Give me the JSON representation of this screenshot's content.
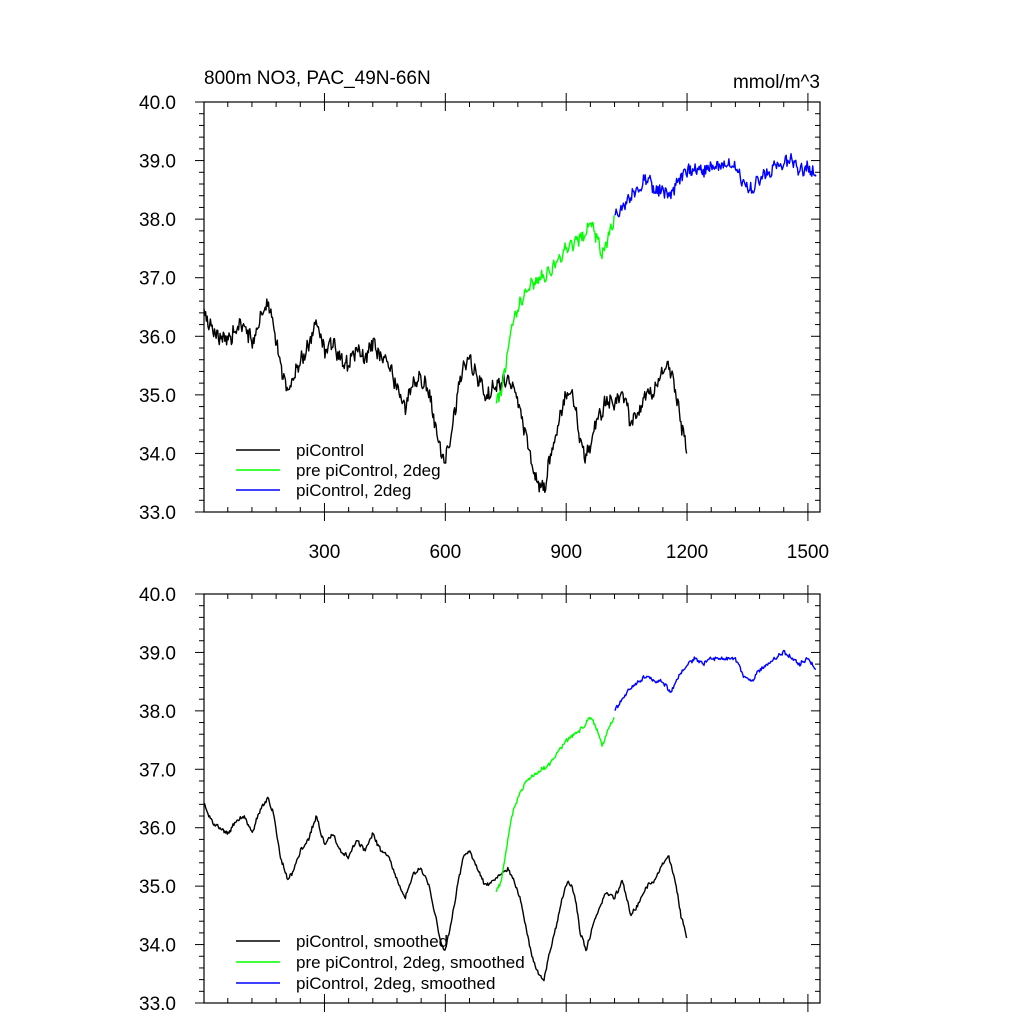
{
  "chart_data": [
    {
      "type": "line",
      "title": "800m NO3, PAC_49N-66N",
      "units": "mmol/m^3",
      "xlim": [
        1,
        1530
      ],
      "ylim": [
        33.0,
        40.0
      ],
      "x_ticks": [
        300,
        600,
        900,
        1200,
        1500
      ],
      "y_ticks": [
        33.0,
        34.0,
        35.0,
        36.0,
        37.0,
        38.0,
        39.0,
        40.0
      ],
      "x_tick_labels": [
        "300",
        "600",
        "900",
        "1200",
        "1500"
      ],
      "y_tick_labels": [
        "33.0",
        "34.0",
        "35.0",
        "36.0",
        "37.0",
        "38.0",
        "39.0",
        "40.0"
      ],
      "grid": false,
      "legend_position": "bottom-left",
      "series": [
        {
          "name": "piControl",
          "color": "#000000",
          "noise": 0.12,
          "x": [
            1,
            20,
            40,
            60,
            80,
            100,
            120,
            140,
            160,
            175,
            190,
            200,
            210,
            225,
            240,
            260,
            280,
            300,
            320,
            340,
            360,
            380,
            400,
            420,
            440,
            460,
            480,
            500,
            520,
            540,
            560,
            575,
            590,
            600,
            615,
            630,
            645,
            660,
            680,
            700,
            720,
            740,
            755,
            770,
            785,
            800,
            815,
            830,
            845,
            860,
            875,
            890,
            905,
            920,
            935,
            950,
            965,
            980,
            1000,
            1020,
            1040,
            1060,
            1080,
            1100,
            1120,
            1140,
            1155,
            1170,
            1185,
            1200
          ],
          "y": [
            36.4,
            36.1,
            36.0,
            35.9,
            36.1,
            36.2,
            35.9,
            36.3,
            36.6,
            36.2,
            35.5,
            35.3,
            35.1,
            35.3,
            35.6,
            35.8,
            36.3,
            35.7,
            35.9,
            35.6,
            35.5,
            35.8,
            35.6,
            35.9,
            35.6,
            35.5,
            35.1,
            34.8,
            35.2,
            35.3,
            35.0,
            34.5,
            34.0,
            33.9,
            34.4,
            35.0,
            35.5,
            35.6,
            35.3,
            35.0,
            35.1,
            35.2,
            35.3,
            35.1,
            34.8,
            34.3,
            33.8,
            33.5,
            33.4,
            33.9,
            34.3,
            34.8,
            35.1,
            34.9,
            34.2,
            33.9,
            34.3,
            34.6,
            34.9,
            34.8,
            35.1,
            34.5,
            34.7,
            35.0,
            35.1,
            35.4,
            35.5,
            35.1,
            34.5,
            34.1
          ]
        },
        {
          "name": "pre piControl, 2deg",
          "color": "#00ff00",
          "noise": 0.1,
          "x": [
            725,
            740,
            755,
            765,
            780,
            800,
            820,
            840,
            860,
            880,
            900,
            920,
            940,
            960,
            975,
            990,
            1005,
            1020
          ],
          "y": [
            34.8,
            35.1,
            35.8,
            36.2,
            36.5,
            36.8,
            36.9,
            37.0,
            37.1,
            37.3,
            37.5,
            37.6,
            37.7,
            37.9,
            37.7,
            37.4,
            37.7,
            38.0
          ]
        },
        {
          "name": "piControl, 2deg",
          "color": "#0000ff",
          "noise": 0.1,
          "x": [
            1020,
            1040,
            1060,
            1080,
            1100,
            1120,
            1140,
            1160,
            1180,
            1200,
            1220,
            1240,
            1260,
            1280,
            1300,
            1320,
            1340,
            1360,
            1380,
            1400,
            1420,
            1440,
            1460,
            1480,
            1500,
            1520
          ],
          "y": [
            38.0,
            38.2,
            38.4,
            38.5,
            38.7,
            38.5,
            38.5,
            38.4,
            38.7,
            38.8,
            38.9,
            38.8,
            38.9,
            38.9,
            38.9,
            38.9,
            38.6,
            38.5,
            38.7,
            38.8,
            38.9,
            39.0,
            39.0,
            38.8,
            38.9,
            38.7
          ]
        }
      ]
    },
    {
      "type": "line",
      "xlim": [
        1,
        1530
      ],
      "ylim": [
        33.0,
        40.0
      ],
      "x_ticks": [
        300,
        600,
        900,
        1200,
        1500
      ],
      "y_ticks": [
        33.0,
        34.0,
        35.0,
        36.0,
        37.0,
        38.0,
        39.0,
        40.0
      ],
      "y_tick_labels": [
        "33.0",
        "34.0",
        "35.0",
        "36.0",
        "37.0",
        "38.0",
        "39.0",
        "40.0"
      ],
      "grid": false,
      "legend_position": "bottom-left",
      "series": [
        {
          "name": "piControl, smoothed",
          "color": "#000000",
          "noise": 0.03,
          "x": [
            1,
            20,
            40,
            60,
            80,
            100,
            120,
            140,
            160,
            175,
            190,
            200,
            210,
            225,
            240,
            260,
            280,
            300,
            320,
            340,
            360,
            380,
            400,
            420,
            440,
            460,
            480,
            500,
            520,
            540,
            560,
            575,
            590,
            600,
            615,
            630,
            645,
            660,
            680,
            700,
            720,
            740,
            755,
            770,
            785,
            800,
            815,
            830,
            845,
            860,
            875,
            890,
            905,
            920,
            935,
            950,
            965,
            980,
            1000,
            1020,
            1040,
            1060,
            1080,
            1100,
            1120,
            1140,
            1155,
            1170,
            1185,
            1200
          ],
          "y": [
            36.4,
            36.1,
            36.0,
            35.9,
            36.1,
            36.2,
            35.9,
            36.3,
            36.5,
            36.2,
            35.5,
            35.3,
            35.1,
            35.3,
            35.6,
            35.8,
            36.2,
            35.7,
            35.9,
            35.6,
            35.5,
            35.8,
            35.6,
            35.9,
            35.6,
            35.5,
            35.1,
            34.8,
            35.2,
            35.3,
            35.0,
            34.5,
            34.0,
            33.9,
            34.4,
            35.0,
            35.5,
            35.6,
            35.3,
            35.0,
            35.1,
            35.2,
            35.3,
            35.1,
            34.8,
            34.3,
            33.8,
            33.5,
            33.4,
            33.9,
            34.3,
            34.8,
            35.1,
            34.9,
            34.2,
            33.9,
            34.3,
            34.6,
            34.9,
            34.8,
            35.1,
            34.5,
            34.7,
            35.0,
            35.1,
            35.4,
            35.5,
            35.1,
            34.5,
            34.1
          ]
        },
        {
          "name": "pre piControl, 2deg, smoothed",
          "color": "#00ff00",
          "noise": 0.03,
          "x": [
            725,
            740,
            755,
            765,
            780,
            800,
            820,
            840,
            860,
            880,
            900,
            920,
            940,
            960,
            975,
            990,
            1005,
            1020
          ],
          "y": [
            34.9,
            35.1,
            35.8,
            36.2,
            36.5,
            36.8,
            36.9,
            37.0,
            37.1,
            37.3,
            37.5,
            37.6,
            37.7,
            37.9,
            37.7,
            37.4,
            37.7,
            37.9
          ]
        },
        {
          "name": "piControl, 2deg, smoothed",
          "color": "#0000ff",
          "noise": 0.03,
          "x": [
            1020,
            1040,
            1060,
            1080,
            1100,
            1120,
            1140,
            1160,
            1180,
            1200,
            1220,
            1240,
            1260,
            1280,
            1300,
            1320,
            1340,
            1360,
            1380,
            1400,
            1420,
            1440,
            1460,
            1480,
            1500,
            1520
          ],
          "y": [
            38.0,
            38.2,
            38.4,
            38.5,
            38.6,
            38.5,
            38.5,
            38.3,
            38.6,
            38.8,
            38.9,
            38.8,
            38.9,
            38.9,
            38.9,
            38.9,
            38.6,
            38.5,
            38.7,
            38.8,
            38.9,
            39.0,
            38.9,
            38.8,
            38.9,
            38.7
          ]
        }
      ]
    }
  ]
}
